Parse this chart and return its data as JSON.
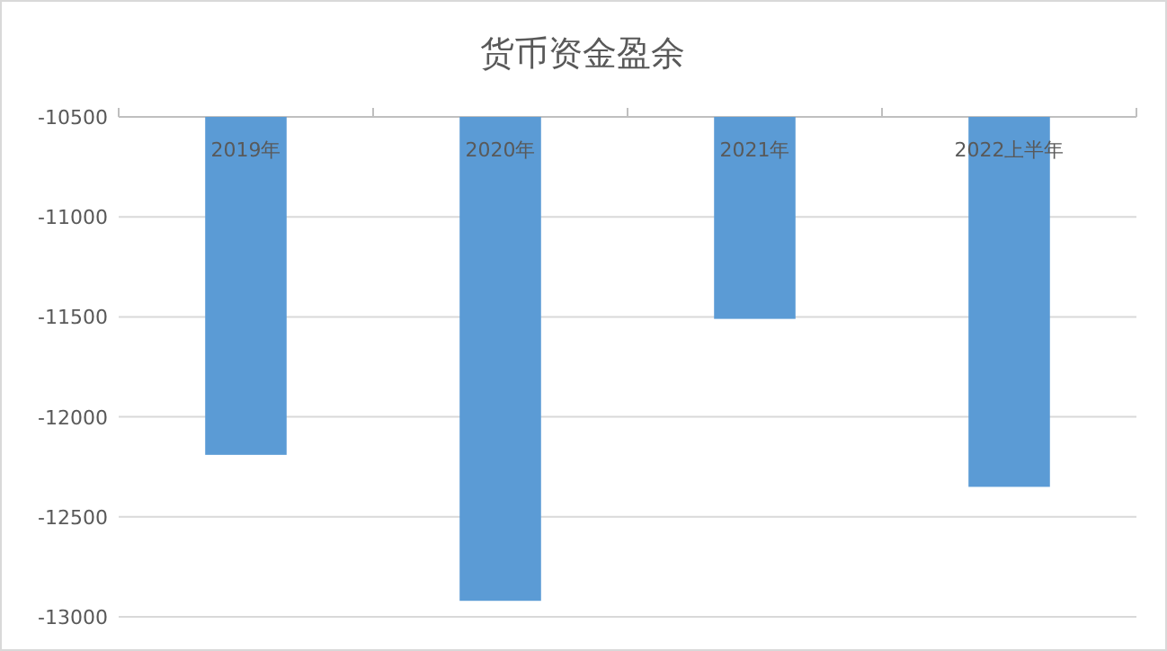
{
  "chart_data": {
    "type": "bar",
    "title": "货币资金盈余",
    "categories": [
      "2019年",
      "2020年",
      "2021年",
      "2022上半年"
    ],
    "series": [
      {
        "color": "#5b9bd5",
        "values": [
          -12190,
          -12920,
          -11510,
          -12350
        ]
      }
    ],
    "ylim": [
      -13000,
      -10500
    ],
    "yticks": [
      -13000,
      -12500,
      -12000,
      -11500,
      -11000,
      -10500
    ],
    "grid": "y"
  }
}
